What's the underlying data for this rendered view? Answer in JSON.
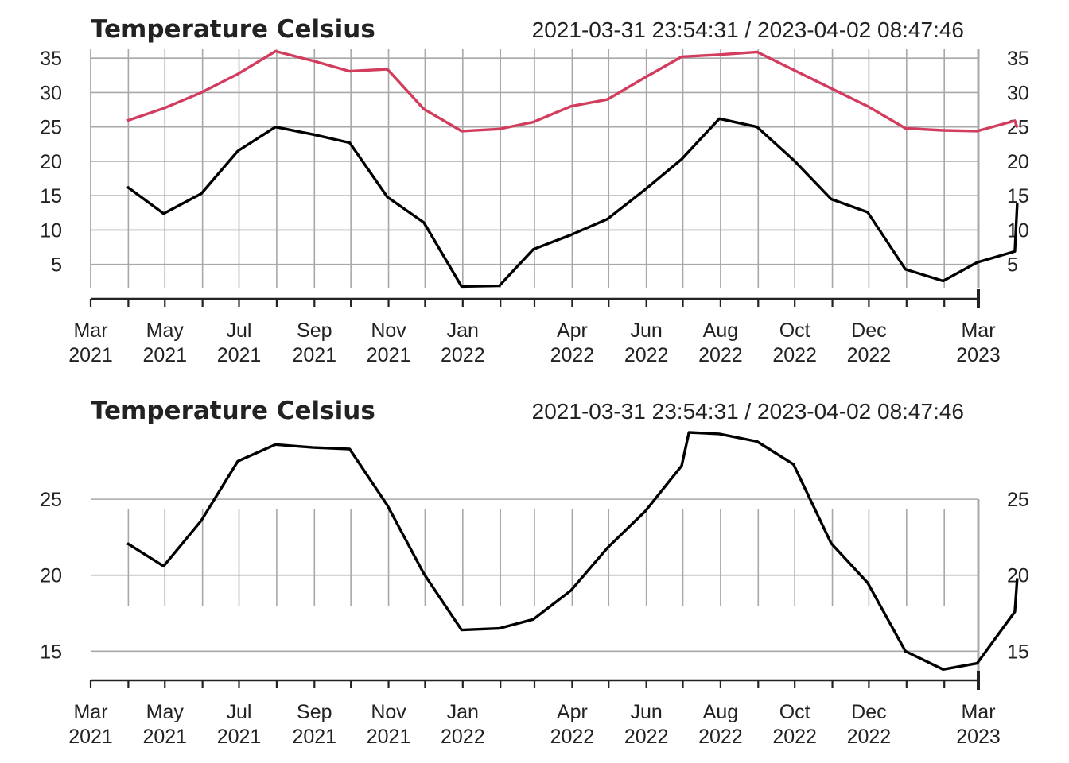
{
  "chart_data": [
    {
      "type": "line",
      "title": "Temperature Celsius",
      "time_range": "2021-03-31 23:54:31 / 2023-04-02 08:47:46",
      "x": [
        "2021-03-31",
        "2021-04-30",
        "2021-05-31",
        "2021-06-30",
        "2021-07-31",
        "2021-08-31",
        "2021-09-30",
        "2021-10-31",
        "2021-11-30",
        "2021-12-31",
        "2022-01-31",
        "2022-02-28",
        "2022-03-31",
        "2022-04-30",
        "2022-05-31",
        "2022-06-30",
        "2022-07-31",
        "2022-08-31",
        "2022-09-30",
        "2022-10-31",
        "2022-11-30",
        "2022-12-31",
        "2023-01-31",
        "2023-02-28",
        "2023-03-31",
        "2023-04-02"
      ],
      "series": [
        {
          "color": "#d23d5e",
          "values": [
            25.9,
            27.7,
            30.0,
            32.7,
            36.0,
            34.6,
            33.1,
            33.4,
            27.6,
            24.4,
            24.7,
            25.7,
            28.0,
            29.0,
            32.2,
            35.2,
            35.5,
            35.9,
            33.3,
            30.6,
            28.0,
            24.8,
            24.5,
            24.4,
            25.9,
            24.9
          ]
        },
        {
          "color": "#000000",
          "values": [
            16.3,
            12.4,
            15.3,
            21.5,
            25.0,
            23.9,
            22.7,
            14.8,
            11.1,
            1.8,
            1.9,
            7.2,
            9.3,
            11.6,
            15.9,
            20.3,
            26.2,
            25.0,
            20.2,
            14.5,
            12.6,
            4.3,
            2.6,
            5.3,
            6.9,
            13.9
          ]
        }
      ],
      "ylim": [
        0,
        36
      ],
      "yticks": [
        5,
        10,
        15,
        20,
        25,
        30,
        35
      ],
      "xticks": [
        {
          "date": "2021-03-01",
          "month": "Mar",
          "year": "2021"
        },
        {
          "date": "2021-05-01",
          "month": "May",
          "year": "2021"
        },
        {
          "date": "2021-07-01",
          "month": "Jul",
          "year": "2021"
        },
        {
          "date": "2021-09-01",
          "month": "Sep",
          "year": "2021"
        },
        {
          "date": "2021-11-01",
          "month": "Nov",
          "year": "2021"
        },
        {
          "date": "2022-01-01",
          "month": "Jan",
          "year": "2022"
        },
        {
          "date": "2022-04-01",
          "month": "Apr",
          "year": "2022"
        },
        {
          "date": "2022-06-01",
          "month": "Jun",
          "year": "2022"
        },
        {
          "date": "2022-08-01",
          "month": "Aug",
          "year": "2022"
        },
        {
          "date": "2022-10-01",
          "month": "Oct",
          "year": "2022"
        },
        {
          "date": "2022-12-01",
          "month": "Dec",
          "year": "2022"
        },
        {
          "date": "2023-03-01",
          "month": "Mar",
          "year": "2023"
        }
      ],
      "grid": true
    },
    {
      "type": "line",
      "title": "Temperature Celsius",
      "time_range": "2021-03-31 23:54:31 / 2023-04-02 08:47:46",
      "x": [
        "2021-03-31",
        "2021-04-30",
        "2021-05-31",
        "2021-06-30",
        "2021-07-31",
        "2021-08-31",
        "2021-09-30",
        "2021-10-31",
        "2021-11-30",
        "2021-12-31",
        "2022-01-31",
        "2022-02-28",
        "2022-03-31",
        "2022-04-30",
        "2022-05-31",
        "2022-06-30",
        "2022-07-06",
        "2022-07-31",
        "2022-08-31",
        "2022-09-30",
        "2022-10-31",
        "2022-11-30",
        "2022-12-31",
        "2023-01-31",
        "2023-02-28",
        "2023-03-31",
        "2023-04-02"
      ],
      "series": [
        {
          "color": "#000000",
          "values": [
            22.1,
            20.6,
            23.6,
            27.5,
            28.6,
            28.4,
            28.3,
            24.6,
            20.1,
            16.4,
            16.5,
            17.1,
            19.0,
            21.8,
            24.2,
            27.2,
            29.4,
            29.3,
            28.8,
            27.3,
            22.1,
            19.5,
            15.0,
            13.8,
            14.2,
            17.6,
            19.8
          ]
        }
      ],
      "ylim": [
        13.5,
        29.4
      ],
      "yticks": [
        15,
        20,
        25
      ],
      "xticks": [
        {
          "date": "2021-03-01",
          "month": "Mar",
          "year": "2021"
        },
        {
          "date": "2021-05-01",
          "month": "May",
          "year": "2021"
        },
        {
          "date": "2021-07-01",
          "month": "Jul",
          "year": "2021"
        },
        {
          "date": "2021-09-01",
          "month": "Sep",
          "year": "2021"
        },
        {
          "date": "2021-11-01",
          "month": "Nov",
          "year": "2021"
        },
        {
          "date": "2022-01-01",
          "month": "Jan",
          "year": "2022"
        },
        {
          "date": "2022-04-01",
          "month": "Apr",
          "year": "2022"
        },
        {
          "date": "2022-06-01",
          "month": "Jun",
          "year": "2022"
        },
        {
          "date": "2022-08-01",
          "month": "Aug",
          "year": "2022"
        },
        {
          "date": "2022-10-01",
          "month": "Oct",
          "year": "2022"
        },
        {
          "date": "2022-12-01",
          "month": "Dec",
          "year": "2022"
        },
        {
          "date": "2023-03-01",
          "month": "Mar",
          "year": "2023"
        }
      ],
      "grid": true
    }
  ]
}
